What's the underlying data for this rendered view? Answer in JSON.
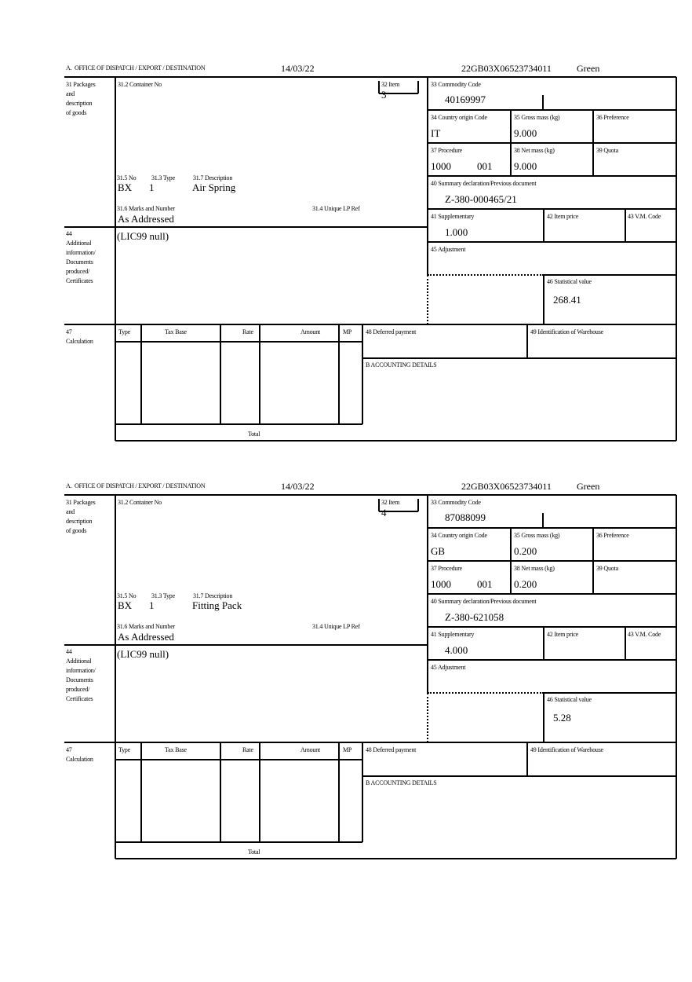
{
  "labels": {
    "office": "A.  OFFICE OF DISPATCH / EXPORT / DESTINATION",
    "box31": [
      "31 Packages",
      "and",
      "description",
      "of goods"
    ],
    "container_no": "31.2 Container No",
    "item": "32 Item",
    "commodity_code": "33 Commodity Code",
    "country_origin": "34 Country origin Code",
    "gross_mass": "35 Gross mass (kg)",
    "preference": "36 Preference",
    "procedure": "37 Procedure",
    "net_mass": "38 Net mass (kg)",
    "quota": "39 Quota",
    "summary_declaration": "40 Summary declaration/Previous document",
    "supplementary": "41 Supplementary",
    "item_price": "42 Item price",
    "vm_code": "43 V.M. Code",
    "adjustment": "45 Adjustment",
    "statistical_value": "46 Statistical value",
    "pkg_no": "31.5 No",
    "pkg_type": "31.3 Type",
    "pkg_description": "31.7 Description",
    "marks": "31.6 Marks and Number",
    "unique_lp_ref": "31.4 Unique LP Ref",
    "box44": [
      "44",
      "Additional",
      "information/",
      "Documents",
      "produced/",
      "Certificates"
    ],
    "box47": [
      "47",
      "Calculation"
    ],
    "calc_columns": [
      "Type",
      "Tax Base",
      "Rate",
      "Amount",
      "MP"
    ],
    "deferred_payment": "48 Deferred payment",
    "warehouse": "49 Identification of Warehouse",
    "accounting": "B ACCOUNTING DETAILS",
    "total": "Total"
  },
  "declarations": [
    {
      "date": "14/03/22",
      "reference": "22GB03X06523734011",
      "route": "Green",
      "item": "3",
      "commodity_code": "40169997",
      "country_origin": "IT",
      "gross_mass": "9.000",
      "procedure": "1000",
      "procedure_additional": "001",
      "net_mass": "9.000",
      "summary_declaration": "Z-380-000465/21",
      "supplementary": "1.000",
      "statistical_value": "268.41",
      "pkg_no": "BX",
      "pkg_type": "1",
      "pkg_description": "Air Spring",
      "marks": "As Addressed",
      "additional_info": "(LIC99 null)"
    },
    {
      "date": "14/03/22",
      "reference": "22GB03X06523734011",
      "route": "Green",
      "item": "4",
      "commodity_code": "87088099",
      "country_origin": "GB",
      "gross_mass": "0.200",
      "procedure": "1000",
      "procedure_additional": "001",
      "net_mass": "0.200",
      "summary_declaration": "Z-380-621058",
      "supplementary": "4.000",
      "statistical_value": "5.28",
      "pkg_no": "BX",
      "pkg_type": "1",
      "pkg_description": "Fitting Pack",
      "marks": "As Addressed",
      "additional_info": "(LIC99 null)"
    }
  ]
}
